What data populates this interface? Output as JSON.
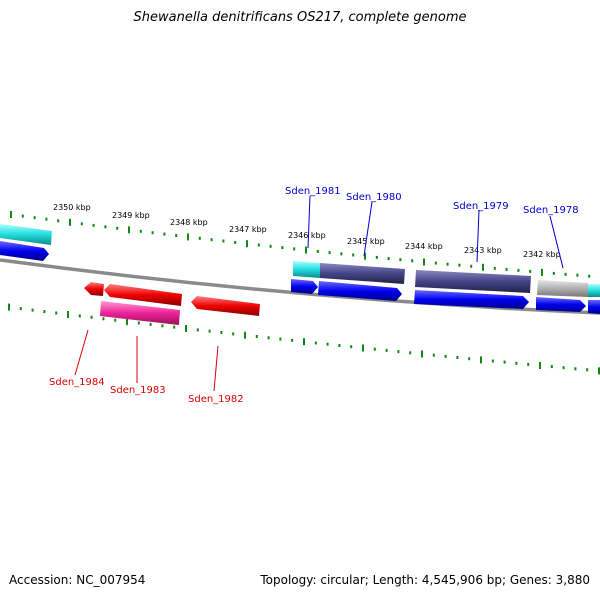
{
  "title": "Shewanella denitrificans OS217, complete genome",
  "footer": {
    "accession": "Accession: NC_007954",
    "summary": "Topology: circular; Length: 4,545,906 bp; Genes: 3,880"
  },
  "scale_labels": [
    "2350 kbp",
    "2349 kbp",
    "2348 kbp",
    "2347 kbp",
    "2346 kbp",
    "2345 kbp",
    "2344 kbp",
    "2343 kbp",
    "2342 kbp"
  ],
  "gene_labels": {
    "forward": [
      "Sden_1981",
      "Sden_1980",
      "Sden_1979",
      "Sden_1978"
    ],
    "reverse": [
      "Sden_1984",
      "Sden_1983",
      "Sden_1982"
    ]
  },
  "colors": {
    "forward_label": "#0000cc",
    "reverse_label": "#dd0000",
    "tick": "#118811",
    "backbone": "#808080",
    "blue": "#0000ee",
    "cyan": "#22dddd",
    "navy": "#444488",
    "gray": "#b0b0b0",
    "red": "#ee0000",
    "pink": "#ee2299"
  }
}
